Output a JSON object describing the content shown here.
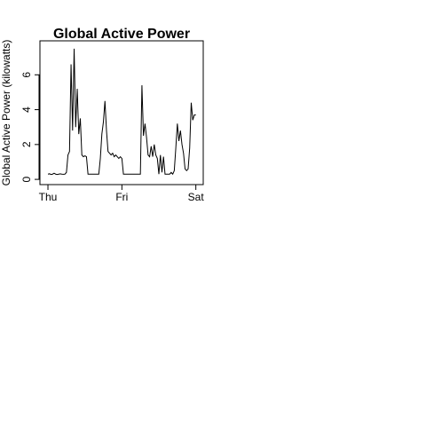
{
  "chart_data": {
    "type": "line",
    "title": "Global Active Power",
    "ylabel": "Global Active Power (kilowatts)",
    "x": [
      0,
      0.5,
      1,
      1.5,
      2,
      2.5,
      3,
      3.5,
      4,
      4.5,
      5,
      5.5,
      6,
      6.5,
      7,
      7.5,
      8,
      8.5,
      9,
      9.5,
      10,
      10.5,
      11,
      11.5,
      12,
      12.5,
      13,
      13.5,
      14,
      14.5,
      15,
      15.5,
      16,
      16.5,
      17,
      17.5,
      18,
      18.5,
      19,
      19.5,
      20,
      20.5,
      21,
      21.5,
      22,
      22.5,
      23,
      23.5,
      24,
      24.5,
      25,
      25.5,
      26,
      26.5,
      27,
      27.5,
      28,
      28.5,
      29,
      29.5,
      30,
      30.5,
      31,
      31.5,
      32,
      32.5,
      33,
      33.5,
      34,
      34.5,
      35,
      35.5,
      36,
      36.5,
      37,
      37.5,
      38,
      38.5,
      39,
      39.5,
      40,
      40.5,
      41,
      41.5,
      42,
      42.5,
      43,
      43.5,
      44,
      44.5,
      45,
      45.5,
      46,
      46.5,
      47,
      47.5,
      48
    ],
    "series": [
      {
        "color": "#000000",
        "values": [
          0.3,
          0.32,
          0.28,
          0.3,
          0.35,
          0.3,
          0.28,
          0.3,
          0.32,
          0.3,
          0.29,
          0.3,
          0.4,
          1.4,
          1.6,
          6.6,
          2.8,
          7.5,
          3.0,
          5.2,
          2.6,
          3.5,
          1.4,
          1.3,
          1.35,
          1.3,
          0.3,
          0.3,
          0.3,
          0.3,
          0.3,
          0.3,
          0.3,
          0.3,
          1.2,
          2.6,
          3.3,
          4.5,
          2.8,
          1.6,
          1.5,
          1.4,
          1.5,
          1.3,
          1.4,
          1.3,
          1.2,
          1.3,
          1.2,
          0.3,
          0.3,
          0.3,
          0.3,
          0.3,
          0.3,
          0.3,
          0.3,
          0.3,
          0.3,
          0.3,
          0.3,
          5.4,
          2.5,
          3.2,
          2.4,
          1.4,
          1.3,
          1.9,
          1.3,
          2.0,
          1.4,
          1.2,
          0.3,
          1.4,
          0.4,
          1.3,
          0.3,
          0.3,
          0.3,
          0.3,
          0.4,
          0.3,
          0.5,
          1.8,
          3.2,
          2.2,
          2.8,
          2.0,
          1.5,
          0.6,
          0.5,
          0.6,
          1.8,
          4.4,
          3.4,
          3.7,
          3.7
        ]
      }
    ],
    "xlim": [
      -2.6,
      50.4
    ],
    "xticks": [
      {
        "value": 0,
        "label": "Thu"
      },
      {
        "value": 24,
        "label": "Fri"
      },
      {
        "value": 48,
        "label": "Sat"
      }
    ],
    "ylim": [
      -0.3,
      7.95
    ],
    "yticks": [
      0,
      2,
      4,
      6
    ]
  }
}
